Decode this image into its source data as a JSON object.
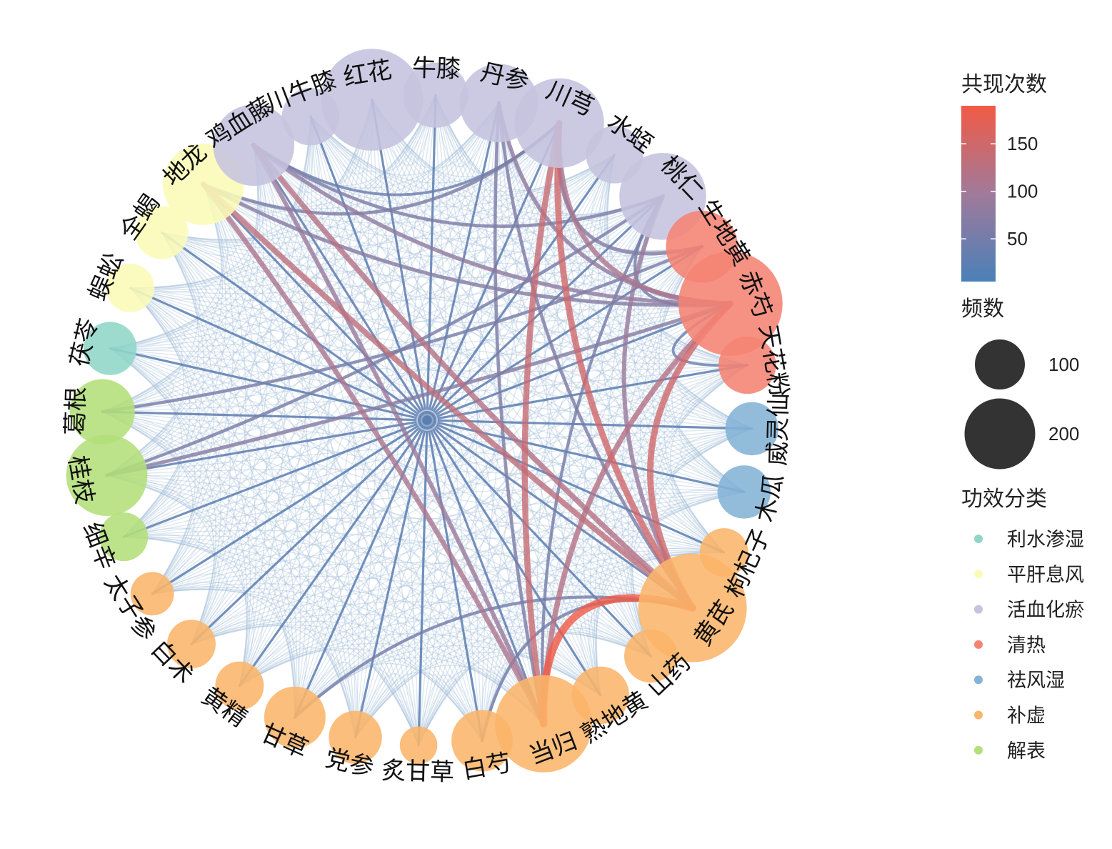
{
  "legend": {
    "edge_title": "共现次数",
    "edge_ticks": [
      {
        "value": 150,
        "label": "150"
      },
      {
        "value": 100,
        "label": "100"
      },
      {
        "value": 50,
        "label": "50"
      }
    ],
    "edge_range": [
      5,
      190
    ],
    "edge_colors": {
      "low": "#4a80b8",
      "mid": "#a07a9a",
      "high": "#f25a45"
    },
    "size_title": "频数",
    "size_items": [
      {
        "value": 100,
        "label": "100"
      },
      {
        "value": 200,
        "label": "200"
      }
    ],
    "category_title": "功效分类",
    "categories": [
      {
        "key": "lishui",
        "label": "利水渗湿",
        "color": "#8fd6c8"
      },
      {
        "key": "pinggan",
        "label": "平肝息风",
        "color": "#fbfbb7"
      },
      {
        "key": "huoxue",
        "label": "活血化瘀",
        "color": "#c5c3de"
      },
      {
        "key": "qingre",
        "label": "清热",
        "color": "#f58373"
      },
      {
        "key": "qufeng",
        "label": "祛风湿",
        "color": "#84b3d6"
      },
      {
        "key": "buxu",
        "label": "补虚",
        "color": "#fab56a"
      },
      {
        "key": "jiebiao",
        "label": "解表",
        "color": "#b3df7a"
      }
    ]
  },
  "chart_data": {
    "type": "network",
    "nodes": [
      {
        "name": "地龙",
        "category": "pinggan",
        "freq": 70
      },
      {
        "name": "鸡血藤",
        "category": "huoxue",
        "freq": 70
      },
      {
        "name": "川牛膝",
        "category": "huoxue",
        "freq": 35
      },
      {
        "name": "红花",
        "category": "huoxue",
        "freq": 110
      },
      {
        "name": "牛膝",
        "category": "huoxue",
        "freq": 45
      },
      {
        "name": "丹参",
        "category": "huoxue",
        "freq": 65
      },
      {
        "name": "川芎",
        "category": "huoxue",
        "freq": 85
      },
      {
        "name": "水蛭",
        "category": "huoxue",
        "freq": 35
      },
      {
        "name": "桃仁",
        "category": "huoxue",
        "freq": 80
      },
      {
        "name": "生地黄",
        "category": "qingre",
        "freq": 55
      },
      {
        "name": "赤芍",
        "category": "qingre",
        "freq": 115
      },
      {
        "name": "天花粉",
        "category": "qingre",
        "freq": 35
      },
      {
        "name": "威灵仙",
        "category": "qufeng",
        "freq": 30
      },
      {
        "name": "木瓜",
        "category": "qufeng",
        "freq": 30
      },
      {
        "name": "枸杞子",
        "category": "buxu",
        "freq": 25
      },
      {
        "name": "黄芪",
        "category": "buxu",
        "freq": 125
      },
      {
        "name": "山药",
        "category": "buxu",
        "freq": 30
      },
      {
        "name": "熟地黄",
        "category": "buxu",
        "freq": 35
      },
      {
        "name": "当归",
        "category": "buxu",
        "freq": 100
      },
      {
        "name": "白芍",
        "category": "buxu",
        "freq": 40
      },
      {
        "name": "炙甘草",
        "category": "buxu",
        "freq": 15
      },
      {
        "name": "党参",
        "category": "buxu",
        "freq": 30
      },
      {
        "name": "甘草",
        "category": "buxu",
        "freq": 40
      },
      {
        "name": "黄精",
        "category": "buxu",
        "freq": 25
      },
      {
        "name": "白术",
        "category": "buxu",
        "freq": 25
      },
      {
        "name": "太子参",
        "category": "buxu",
        "freq": 20
      },
      {
        "name": "细辛",
        "category": "jiebiao",
        "freq": 25
      },
      {
        "name": "桂枝",
        "category": "jiebiao",
        "freq": 70
      },
      {
        "name": "葛根",
        "category": "jiebiao",
        "freq": 45
      },
      {
        "name": "茯苓",
        "category": "lishui",
        "freq": 30
      },
      {
        "name": "蜈蚣",
        "category": "pinggan",
        "freq": 25
      },
      {
        "name": "全蝎",
        "category": "pinggan",
        "freq": 30
      }
    ],
    "strong_edges": [
      {
        "source": "黄芪",
        "target": "当归",
        "weight": 190
      },
      {
        "source": "黄芪",
        "target": "川芎",
        "weight": 150
      },
      {
        "source": "黄芪",
        "target": "赤芍",
        "weight": 150
      },
      {
        "source": "当归",
        "target": "川芎",
        "weight": 140
      },
      {
        "source": "黄芪",
        "target": "地龙",
        "weight": 130
      },
      {
        "source": "当归",
        "target": "赤芍",
        "weight": 120
      },
      {
        "source": "黄芪",
        "target": "鸡血藤",
        "weight": 120
      },
      {
        "source": "当归",
        "target": "地龙",
        "weight": 110
      },
      {
        "source": "赤芍",
        "target": "川芎",
        "weight": 110
      },
      {
        "source": "黄芪",
        "target": "桃仁",
        "weight": 90
      },
      {
        "source": "当归",
        "target": "鸡血藤",
        "weight": 90
      },
      {
        "source": "赤芍",
        "target": "丹参",
        "weight": 80
      },
      {
        "source": "赤芍",
        "target": "鸡血藤",
        "weight": 80
      },
      {
        "source": "桂枝",
        "target": "赤芍",
        "weight": 70
      },
      {
        "source": "生地黄",
        "target": "川芎",
        "weight": 70
      },
      {
        "source": "赤芍",
        "target": "地龙",
        "weight": 70
      },
      {
        "source": "桃仁",
        "target": "鸡血藤",
        "weight": 60
      },
      {
        "source": "川芎",
        "target": "地龙",
        "weight": 60
      },
      {
        "source": "黄芪",
        "target": "丹参",
        "weight": 60
      },
      {
        "source": "当归",
        "target": "丹参",
        "weight": 60
      },
      {
        "source": "葛根",
        "target": "生地黄",
        "weight": 55
      },
      {
        "source": "桂枝",
        "target": "桃仁",
        "weight": 55
      },
      {
        "source": "黄芪",
        "target": "甘草",
        "weight": 50
      },
      {
        "source": "当归",
        "target": "桃仁",
        "weight": 50
      },
      {
        "source": "黄芪",
        "target": "白芍",
        "weight": 50
      },
      {
        "source": "赤芍",
        "target": "桃仁",
        "weight": 50
      },
      {
        "source": "天花粉",
        "target": "赤芍",
        "weight": 40
      },
      {
        "source": "川芎",
        "target": "鸡血藤",
        "weight": 40
      }
    ],
    "hub_edges": [
      {
        "node": "桂枝",
        "weight": 30
      },
      {
        "node": "葛根",
        "weight": 30
      },
      {
        "node": "茯苓",
        "weight": 25
      },
      {
        "node": "蜈蚣",
        "weight": 25
      },
      {
        "node": "全蝎",
        "weight": 25
      },
      {
        "node": "地龙",
        "weight": 30
      },
      {
        "node": "鸡血藤",
        "weight": 30
      },
      {
        "node": "川牛膝",
        "weight": 25
      },
      {
        "node": "红花",
        "weight": 30
      },
      {
        "node": "牛膝",
        "weight": 25
      },
      {
        "node": "丹参",
        "weight": 30
      },
      {
        "node": "川芎",
        "weight": 30
      },
      {
        "node": "水蛭",
        "weight": 25
      },
      {
        "node": "桃仁",
        "weight": 30
      },
      {
        "node": "生地黄",
        "weight": 25
      },
      {
        "node": "赤芍",
        "weight": 30
      },
      {
        "node": "天花粉",
        "weight": 25
      },
      {
        "node": "威灵仙",
        "weight": 25
      },
      {
        "node": "木瓜",
        "weight": 25
      },
      {
        "node": "枸杞子",
        "weight": 20
      },
      {
        "node": "黄芪",
        "weight": 30
      },
      {
        "node": "山药",
        "weight": 25
      },
      {
        "node": "熟地黄",
        "weight": 25
      },
      {
        "node": "当归",
        "weight": 30
      },
      {
        "node": "白芍",
        "weight": 25
      },
      {
        "node": "炙甘草",
        "weight": 20
      },
      {
        "node": "党参",
        "weight": 25
      },
      {
        "node": "甘草",
        "weight": 25
      },
      {
        "node": "黄精",
        "weight": 25
      },
      {
        "node": "白术",
        "weight": 25
      },
      {
        "node": "太子参",
        "weight": 20
      },
      {
        "node": "细辛",
        "weight": 25
      }
    ]
  }
}
